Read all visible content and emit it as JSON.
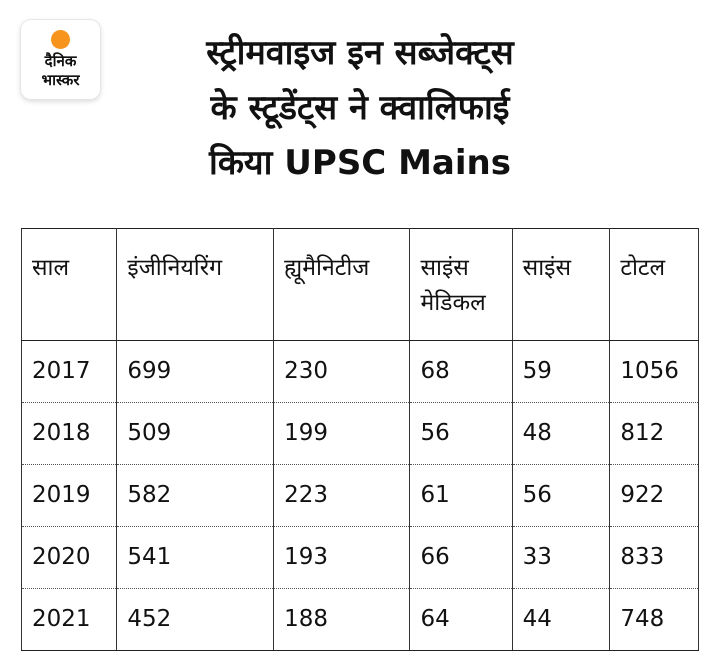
{
  "brand": {
    "line1": "दैनिक",
    "line2": "भास्कर",
    "accent_color": "#f7941d"
  },
  "title": {
    "line1": "स्ट्रीमवाइज इन सब्जेक्ट्स",
    "line2": "के स्टूडेंट्स ने क्वालिफाई",
    "line3": "किया UPSC Mains"
  },
  "chart_data": {
    "type": "table",
    "columns": [
      "साल",
      "इंजीनियरिंग",
      "ह्यूमैनिटीज",
      "साइंस मेडिकल",
      "साइंस",
      "टोटल"
    ],
    "rows": [
      [
        "2017",
        "699",
        "230",
        "68",
        "59",
        "1056"
      ],
      [
        "2018",
        "509",
        "199",
        "56",
        "48",
        "812"
      ],
      [
        "2019",
        "582",
        "223",
        "61",
        "56",
        "922"
      ],
      [
        "2020",
        "541",
        "193",
        "66",
        "33",
        "833"
      ],
      [
        "2021",
        "452",
        "188",
        "64",
        "44",
        "748"
      ]
    ]
  }
}
